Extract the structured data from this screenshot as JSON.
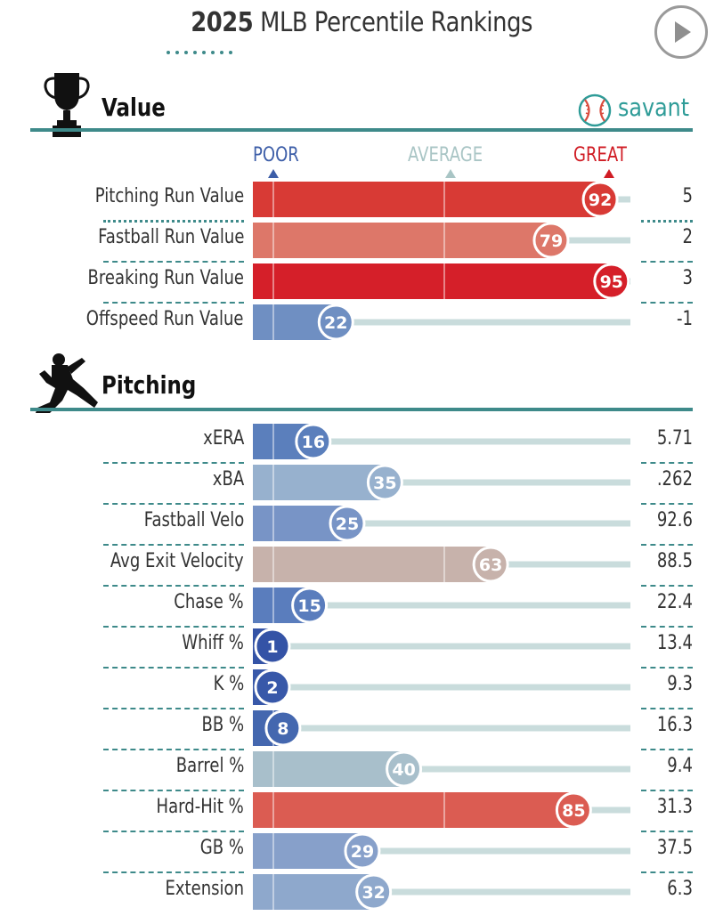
{
  "header": {
    "year": "2025",
    "title": "MLB Percentile Rankings"
  },
  "brand": {
    "name": "savant",
    "color": "#2f9c98"
  },
  "icons": {
    "play": "play-icon",
    "trophy": "trophy-icon",
    "pitcher": "pitcher-icon",
    "savant_logo": "baseball-icon"
  },
  "scale": {
    "poor": "POOR",
    "average": "AVERAGE",
    "great": "GREAT",
    "colors": {
      "poor": "#3d5ea8",
      "average": "#a9c5c5",
      "great": "#d01c24"
    }
  },
  "chart_data": {
    "type": "bar",
    "xlim": [
      0,
      100
    ],
    "sections": [
      {
        "title": "Value",
        "metrics": [
          {
            "label": "Pitching Run Value",
            "percentile": 92,
            "value": "5",
            "color": "#d83a35"
          },
          {
            "label": "Fastball Run Value",
            "percentile": 79,
            "value": "2",
            "color": "#dd7769"
          },
          {
            "label": "Breaking Run Value",
            "percentile": 95,
            "value": "3",
            "color": "#d51f29"
          },
          {
            "label": "Offspeed Run Value",
            "percentile": 22,
            "value": "-1",
            "color": "#6f8fc2"
          }
        ]
      },
      {
        "title": "Pitching",
        "metrics": [
          {
            "label": "xERA",
            "percentile": 16,
            "value": "5.71",
            "color": "#5b7fbc"
          },
          {
            "label": "xBA",
            "percentile": 35,
            "value": ".262",
            "color": "#97b1ce"
          },
          {
            "label": "Fastball Velo",
            "percentile": 25,
            "value": "92.6",
            "color": "#7894c6"
          },
          {
            "label": "Avg Exit Velocity",
            "percentile": 63,
            "value": "88.5",
            "color": "#c7b2ab"
          },
          {
            "label": "Chase %",
            "percentile": 15,
            "value": "22.4",
            "color": "#5a7dbd"
          },
          {
            "label": "Whiff %",
            "percentile": 1,
            "value": "13.4",
            "color": "#3453a6"
          },
          {
            "label": "K %",
            "percentile": 2,
            "value": "9.3",
            "color": "#3858a9"
          },
          {
            "label": "BB %",
            "percentile": 8,
            "value": "16.3",
            "color": "#4467af"
          },
          {
            "label": "Barrel %",
            "percentile": 40,
            "value": "9.4",
            "color": "#a8bfcb"
          },
          {
            "label": "Hard-Hit %",
            "percentile": 85,
            "value": "31.3",
            "color": "#db5c52"
          },
          {
            "label": "GB %",
            "percentile": 29,
            "value": "37.5",
            "color": "#87a0ca"
          },
          {
            "label": "Extension",
            "percentile": 32,
            "value": "6.3",
            "color": "#8ea8cc"
          }
        ]
      }
    ]
  }
}
